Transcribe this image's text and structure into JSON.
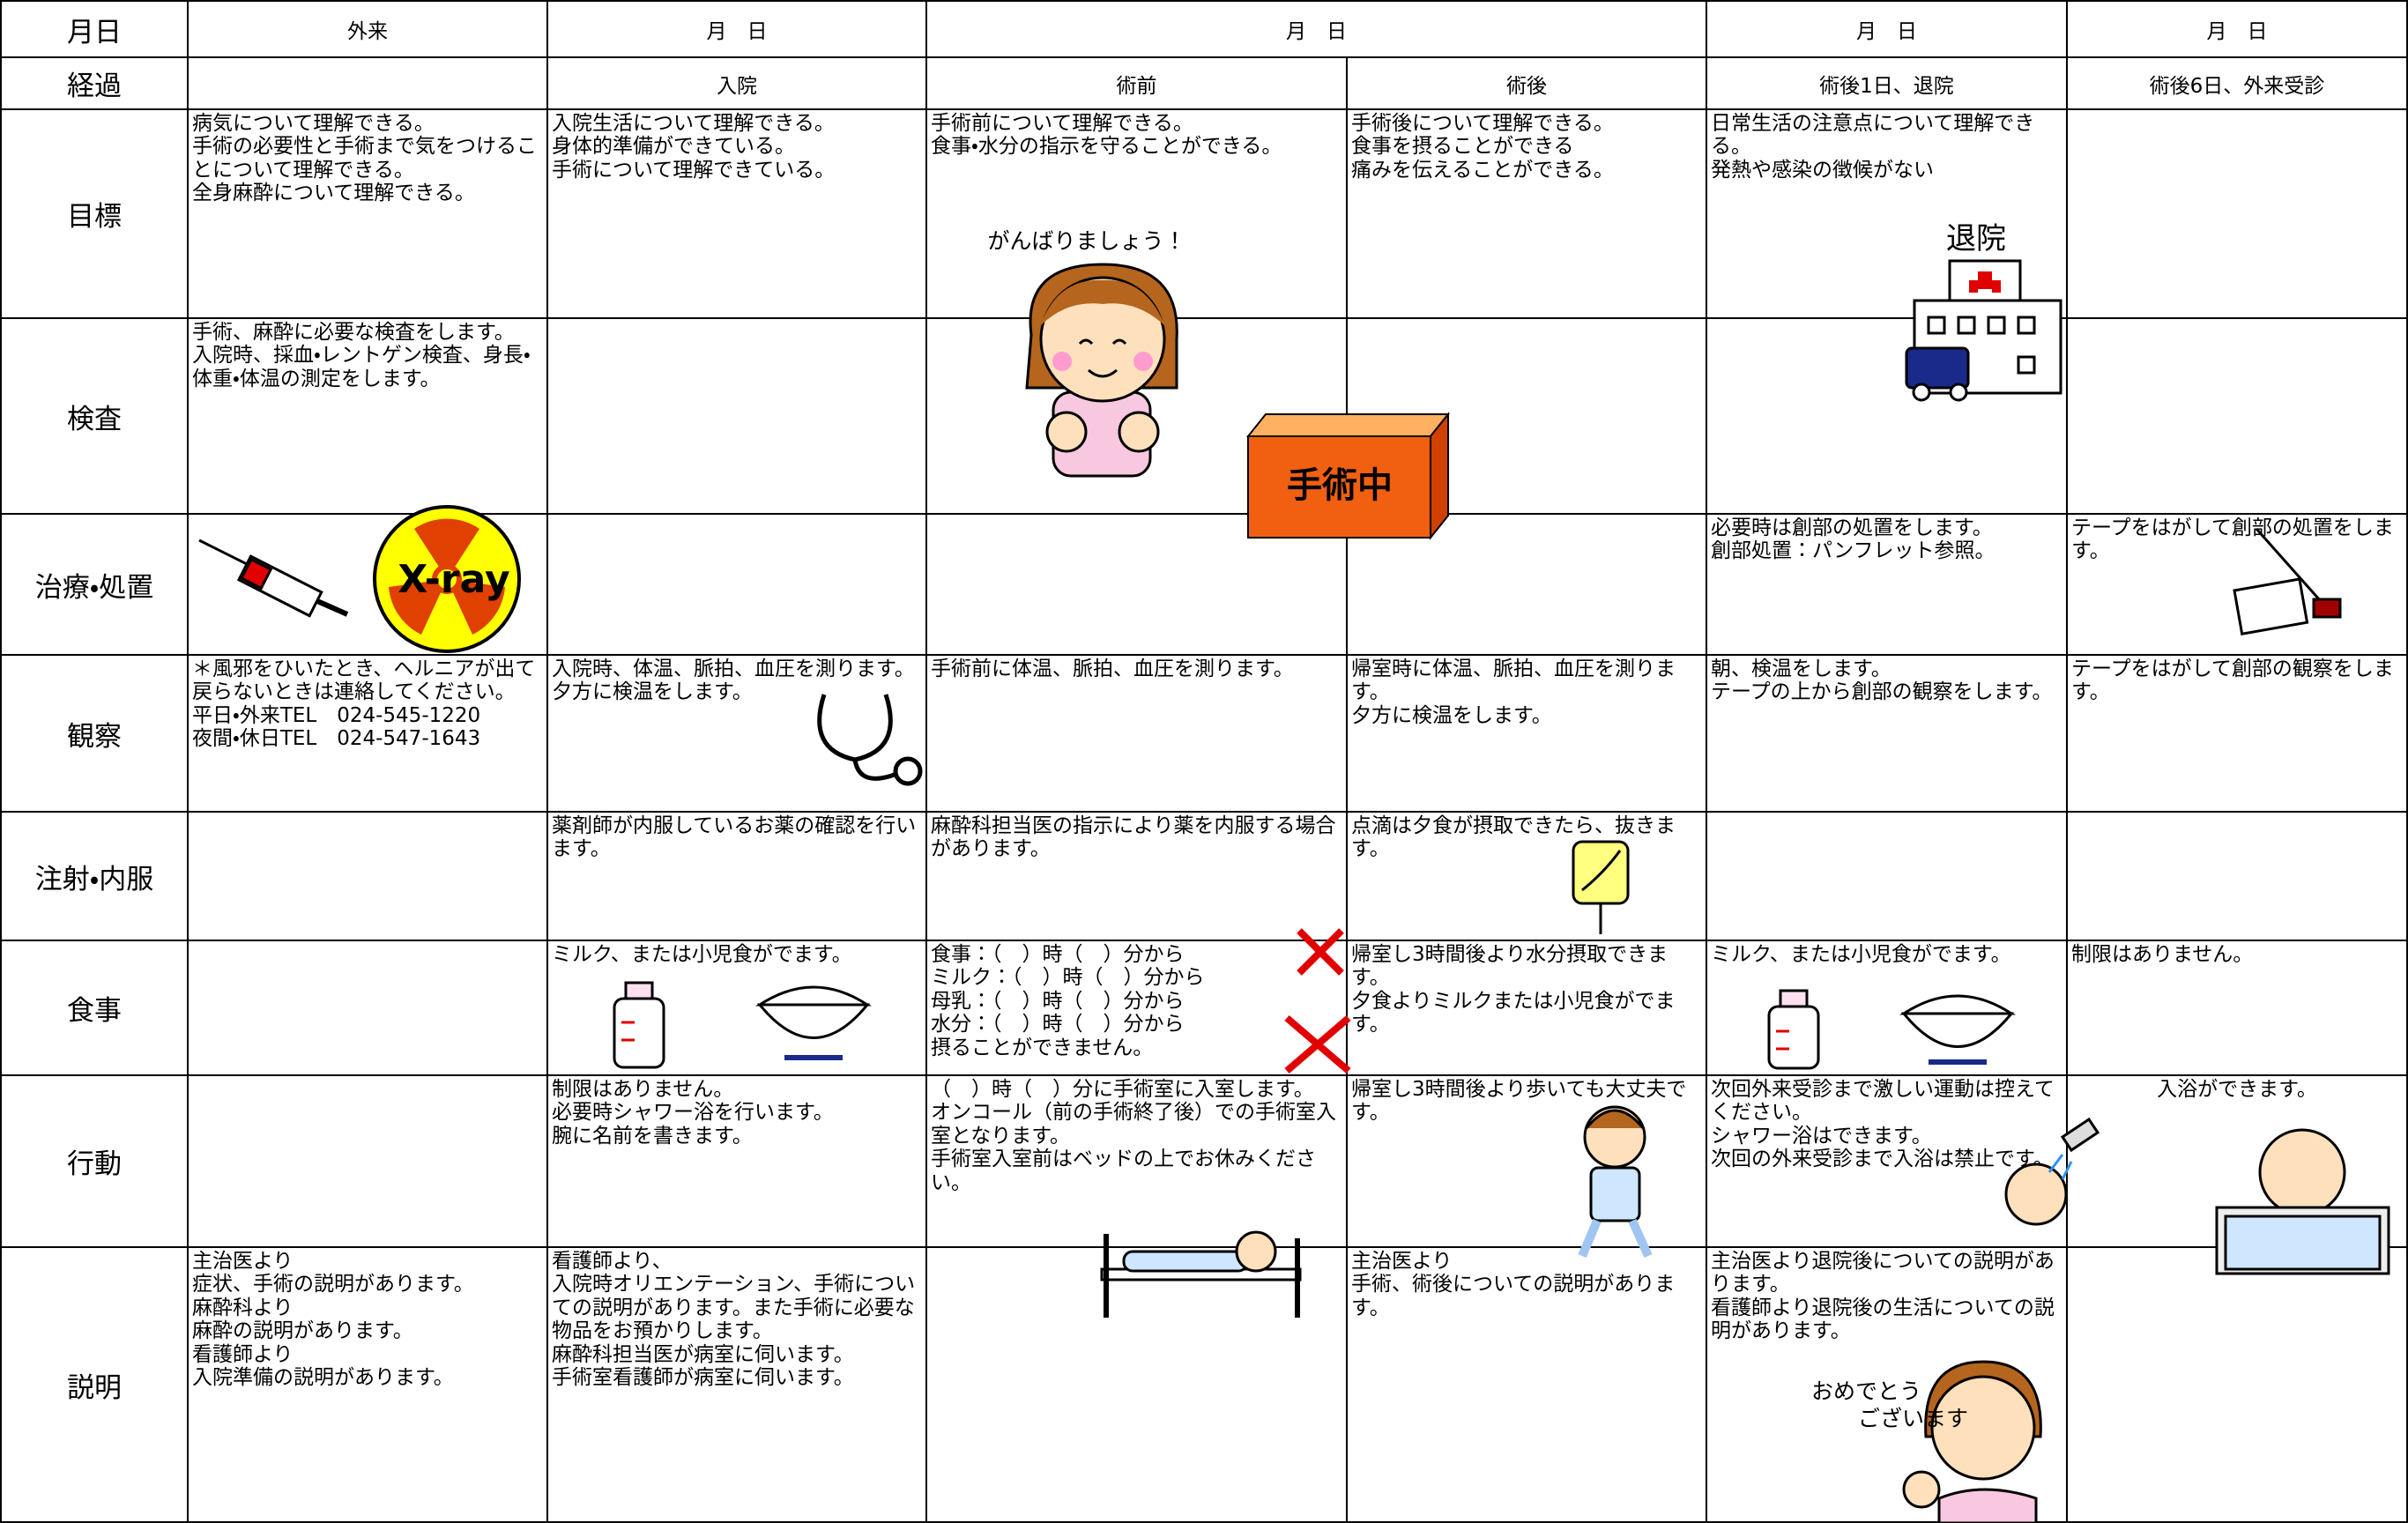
{
  "header": {
    "label": "月日",
    "cells": [
      "外来",
      "月　日",
      "月　日",
      "月　日",
      "月　日"
    ]
  },
  "rows": [
    {
      "label": "経過",
      "cells": [
        null,
        "入院",
        "術前",
        "術後",
        "術後1日、退院",
        "術後6日、外来受診"
      ]
    },
    {
      "label": "目標",
      "cells": [
        "病気について理解できる。\n手術の必要性と手術まで気をつけることについて理解できる。\n全身麻酔について理解できる。",
        "入院生活について理解できる。\n身体的準備ができている。\n手術について理解できている。",
        "手術前について理解できる。\n食事・水分の指示を守ることができる。",
        "手術後について理解できる。\n食事を摂ることができる\n痛みを伝えることができる。",
        "日常生活の注意点について理解できる。\n発熱や感染の徴候がない",
        null
      ]
    },
    {
      "label": "検査",
      "cells": [
        "手術、麻酔に必要な検査をします。\n入院時、採血・レントゲン検査、身長・体重・体温の測定をします。",
        null,
        null,
        null,
        null,
        null
      ]
    },
    {
      "label": "治療・処置",
      "cells": [
        null,
        null,
        null,
        null,
        "必要時は創部の処置をします。\n創部処置：パンフレット参照。",
        "テープをはがして創部の処置をします。"
      ]
    },
    {
      "label": "観察",
      "cells": [
        "＊風邪をひいたとき、ヘルニアが出て戻らないときは連絡してください。\n平日・外来TEL　024-545-1220\n夜間・休日TEL　024-547-1643",
        "入院時、体温、脈拍、血圧を測ります。\n夕方に検温をします。",
        "手術前に体温、脈拍、血圧を測ります。",
        "帰室時に体温、脈拍、血圧を測ります。\n夕方に検温をします。",
        "朝、検温をします。\nテープの上から創部の観察をします。",
        "テープをはがして創部の観察をします。"
      ]
    },
    {
      "label": "注射・内服",
      "cells": [
        null,
        "薬剤師が内服しているお薬の確認を行います。",
        "麻酔科担当医の指示により薬を内服する場合があります。",
        "点滴は夕食が摂取できたら、抜きます。",
        null,
        null
      ]
    },
    {
      "label": "食事",
      "cells": [
        null,
        "ミルク、または小児食がでます。",
        "食事：（　）時（　）分から\nミルク：（　）時（　）分から\n母乳：（　）時（　）分から\n水分：（　）時（　）分から\n摂ることができません。",
        "帰室し3時間後より水分摂取できます。\n夕食よりミルクまたは小児食がでます。",
        "ミルク、または小児食がでます。",
        "制限はありません。"
      ]
    },
    {
      "label": "行動",
      "cells": [
        null,
        "制限はありません。\n必要時シャワー浴を行います。\n腕に名前を書きます。",
        "（　）時（　）分に手術室に入室します。\nオンコール（前の手術終了後）での手術室入室となります。\n手術室入室前はベッドの上でお休みください。",
        "帰室し3時間後より歩いても大丈夫です。",
        "次回外来受診まで激しい運動は控えてください。\nシャワー浴はできます。\n次回の外来受診まで入浴は禁止です。",
        "入浴ができます。"
      ]
    },
    {
      "label": "説明",
      "cells": [
        "主治医より\n症状、手術の説明があります。\n麻酔科より\n麻酔の説明があります。\n看護師より\n入院準備の説明があります。",
        "看護師より、\n入院時オリエンテーション、手術についての説明があります。また手術に必要な物品をお預かりします。\n麻酔科担当医が病室に伺います。\n手術室看護師が病室に伺います。",
        null,
        "主治医より\n手術、術後についての説明があります。",
        "主治医より退院後についての説明があります。\n看護師より退院後の生活についての説明があります。",
        null
      ]
    }
  ],
  "illustrations": {
    "cheer": "がんばりましょう！",
    "surgery": "手術中",
    "discharge": "退院",
    "xray": "X-ray",
    "congrats": [
      "おめでとう",
      "ございます"
    ]
  }
}
